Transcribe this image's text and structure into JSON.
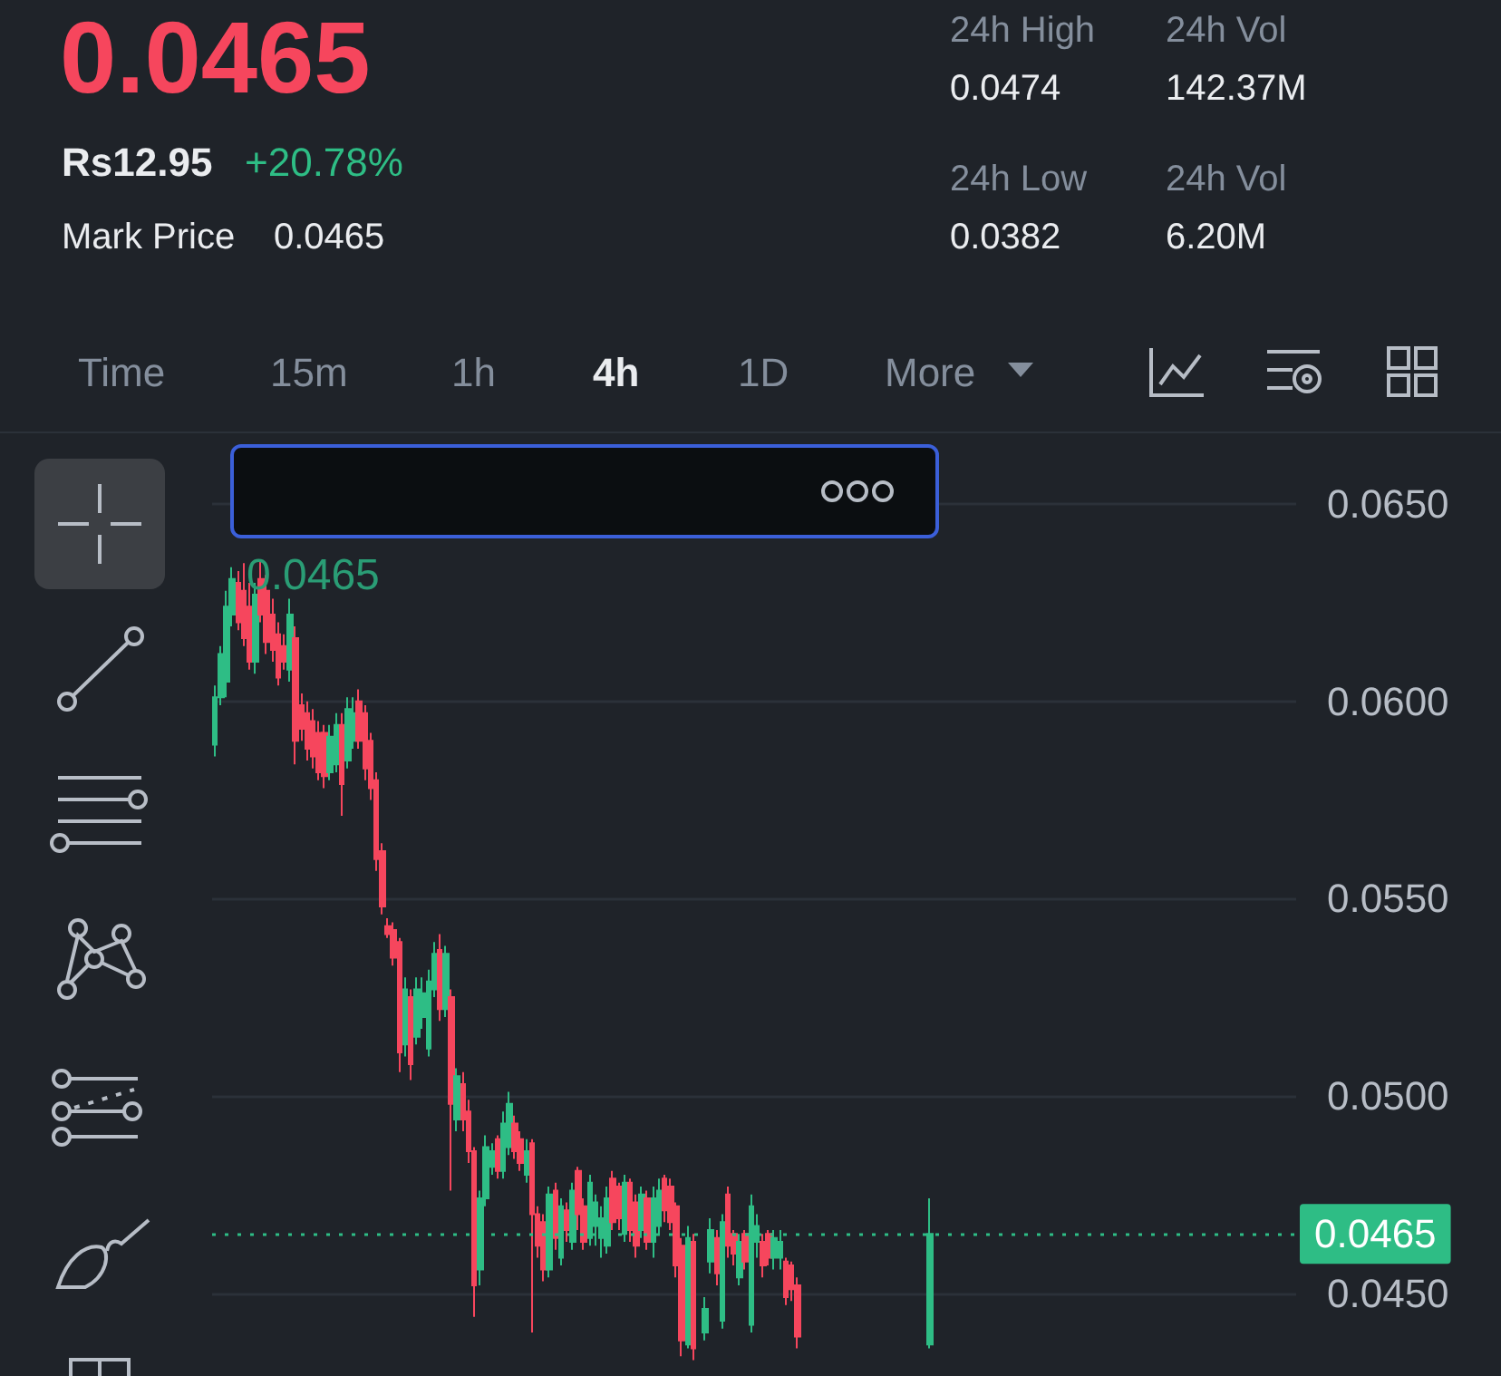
{
  "chart_data": {
    "type": "candlestick",
    "title": "0.0465",
    "annotations": [
      "Rs12.95",
      "+20.78%",
      "Mark Price",
      "0.0465",
      "24h High",
      "0.0474",
      "24h Vol",
      "142.37M",
      "24h Low",
      "0.0382",
      "24h Vol",
      "6.20M",
      "Time",
      "15m",
      "1h",
      "4h",
      "1D",
      "More",
      "0.0465"
    ],
    "categories": [
      null,
      null,
      null,
      null,
      null,
      null,
      null,
      null,
      null,
      null,
      null,
      null,
      null,
      null,
      null,
      null,
      null,
      null,
      null,
      null,
      null,
      null,
      null,
      null,
      null,
      null,
      null,
      null,
      null,
      null,
      null,
      null,
      null,
      null,
      null,
      null,
      null,
      null,
      null,
      null,
      null,
      null,
      null,
      null,
      null,
      null,
      null,
      null,
      null,
      null,
      null,
      null,
      null,
      null,
      null,
      null,
      null,
      null,
      null,
      null,
      null,
      null,
      null,
      null,
      null,
      null,
      null,
      null,
      null,
      null,
      null,
      null,
      null,
      null,
      null,
      null,
      null,
      null,
      null,
      null,
      null,
      null,
      null,
      null,
      null,
      null,
      null,
      null,
      null,
      null,
      null,
      null,
      null,
      null,
      null,
      null,
      null,
      null,
      null,
      null,
      null,
      null,
      null,
      null,
      null,
      null,
      null,
      null,
      null,
      null,
      null,
      null,
      null,
      null,
      null,
      null,
      null,
      null,
      null,
      null,
      null,
      null,
      null,
      null,
      null,
      null,
      null,
      null,
      null,
      null,
      null,
      null,
      null,
      null,
      null,
      null,
      null,
      null,
      null,
      null,
      null,
      null,
      null,
      null,
      null,
      null,
      null,
      null,
      null,
      null,
      null,
      null,
      null,
      null,
      null,
      null,
      null,
      null,
      null,
      null,
      null,
      null,
      null,
      null,
      null,
      null,
      null,
      null,
      null,
      null,
      null,
      null,
      null,
      null,
      null,
      null,
      null,
      null,
      null,
      null,
      null,
      null,
      null,
      null,
      null,
      null,
      null,
      null
    ],
    "ohlc": [
      [
        0.0589,
        0.0604,
        0.0586,
        0.0601
      ],
      [
        0.0601,
        0.0614,
        0.0599,
        0.0612
      ],
      [
        0.0605,
        0.0628,
        0.0601,
        0.0624
      ],
      [
        0.0622,
        0.0634,
        0.0619,
        0.0631
      ],
      [
        0.063,
        0.0633,
        0.0618,
        0.062
      ],
      [
        0.0628,
        0.0635,
        0.0614,
        0.0616
      ],
      [
        0.0624,
        0.063,
        0.0608,
        0.061
      ],
      [
        0.061,
        0.063,
        0.0607,
        0.0627
      ],
      [
        0.0631,
        0.0636,
        0.062,
        0.0622
      ],
      [
        0.0628,
        0.0632,
        0.0612,
        0.0615
      ],
      [
        0.0622,
        0.0626,
        0.061,
        0.0613
      ],
      [
        0.0617,
        0.062,
        0.0604,
        0.0606
      ],
      [
        0.0614,
        0.0617,
        0.0608,
        0.061
      ],
      [
        0.0608,
        0.0626,
        0.0605,
        0.0622
      ],
      [
        0.0616,
        0.0619,
        0.0584,
        0.059
      ],
      [
        0.0599,
        0.0602,
        0.059,
        0.0593
      ],
      [
        0.0597,
        0.06,
        0.0585,
        0.0588
      ],
      [
        0.0595,
        0.0598,
        0.0583,
        0.0586
      ],
      [
        0.0592,
        0.0595,
        0.058,
        0.0582
      ],
      [
        0.0592,
        0.0594,
        0.0578,
        0.0581
      ],
      [
        0.0582,
        0.0594,
        0.058,
        0.0591
      ],
      [
        0.0584,
        0.0597,
        0.0582,
        0.0594
      ],
      [
        0.0594,
        0.0597,
        0.0571,
        0.0579
      ],
      [
        0.0585,
        0.0601,
        0.0583,
        0.0598
      ],
      [
        0.059,
        0.0601,
        0.0588,
        0.0597
      ],
      [
        0.06,
        0.0603,
        0.0588,
        0.059
      ],
      [
        0.0597,
        0.0599,
        0.058,
        0.0583
      ],
      [
        0.059,
        0.0592,
        0.0575,
        0.0578
      ],
      [
        0.058,
        0.0582,
        0.0557,
        0.056
      ],
      [
        0.0562,
        0.0564,
        0.0546,
        0.0548
      ],
      [
        0.0543,
        0.0545,
        0.054,
        0.0541
      ],
      [
        0.0542,
        0.0544,
        0.0533,
        0.0535
      ],
      [
        0.0539,
        0.054,
        0.0506,
        0.0511
      ],
      [
        0.0513,
        0.053,
        0.051,
        0.0527
      ],
      [
        0.0525,
        0.0527,
        0.0504,
        0.0508
      ],
      [
        0.0515,
        0.053,
        0.0513,
        0.0527
      ],
      [
        0.052,
        0.053,
        0.0517,
        0.0526
      ],
      [
        0.0512,
        0.0532,
        0.051,
        0.0529
      ],
      [
        0.0527,
        0.0539,
        0.0525,
        0.0536
      ],
      [
        0.0537,
        0.0541,
        0.0519,
        0.0522
      ],
      [
        0.0522,
        0.0538,
        0.052,
        0.0536
      ],
      [
        0.0525,
        0.0527,
        0.0476,
        0.0498
      ],
      [
        0.0494,
        0.0507,
        0.0491,
        0.0505
      ],
      [
        0.0503,
        0.0506,
        0.0491,
        0.0494
      ],
      [
        0.0496,
        0.0499,
        0.0483,
        0.0486
      ],
      [
        0.0486,
        0.0487,
        0.0444,
        0.0452
      ],
      [
        0.0456,
        0.0476,
        0.0452,
        0.0474
      ],
      [
        0.0474,
        0.049,
        0.0472,
        0.0487
      ],
      [
        0.0482,
        0.0488,
        0.048,
        0.0486
      ],
      [
        0.0489,
        0.049,
        0.0479,
        0.0481
      ],
      [
        0.0481,
        0.0496,
        0.0479,
        0.0493
      ],
      [
        0.0487,
        0.0501,
        0.0485,
        0.0498
      ],
      [
        0.0493,
        0.0495,
        0.0484,
        0.0486
      ],
      [
        0.0489,
        0.0491,
        0.0481,
        0.0483
      ],
      [
        0.048,
        0.0489,
        0.0478,
        0.0486
      ],
      [
        0.0488,
        0.0489,
        0.044,
        0.047
      ],
      [
        0.047,
        0.0472,
        0.0459,
        0.0462
      ],
      [
        0.0468,
        0.047,
        0.0453,
        0.0456
      ],
      [
        0.0456,
        0.0477,
        0.0454,
        0.0475
      ],
      [
        0.0476,
        0.0478,
        0.0461,
        0.0464
      ],
      [
        0.0459,
        0.0474,
        0.0457,
        0.0472
      ],
      [
        0.0471,
        0.0473,
        0.0463,
        0.0466
      ],
      [
        0.0463,
        0.0478,
        0.0461,
        0.0476
      ],
      [
        0.0481,
        0.0482,
        0.0466,
        0.047
      ],
      [
        0.0472,
        0.0474,
        0.0461,
        0.0463
      ],
      [
        0.0464,
        0.048,
        0.0462,
        0.0478
      ],
      [
        0.0467,
        0.0475,
        0.0462,
        0.0473
      ],
      [
        0.0464,
        0.0472,
        0.0459,
        0.0469
      ],
      [
        0.0462,
        0.0477,
        0.046,
        0.0474
      ],
      [
        0.0479,
        0.0481,
        0.0466,
        0.0468
      ],
      [
        0.0477,
        0.0478,
        0.0466,
        0.0469
      ],
      [
        0.0465,
        0.048,
        0.0463,
        0.0478
      ],
      [
        0.0478,
        0.0479,
        0.0463,
        0.0466
      ],
      [
        0.0473,
        0.0475,
        0.0459,
        0.0462
      ],
      [
        0.0466,
        0.0477,
        0.0464,
        0.0475
      ],
      [
        0.0474,
        0.0476,
        0.0461,
        0.0463
      ],
      [
        0.0463,
        0.0477,
        0.0459,
        0.0474
      ],
      [
        0.0467,
        0.0479,
        0.0465,
        0.0476
      ],
      [
        0.0479,
        0.048,
        0.0468,
        0.0471
      ],
      [
        0.0477,
        0.0479,
        0.0466,
        0.0468
      ],
      [
        0.0472,
        0.0473,
        0.0454,
        0.0457
      ],
      [
        0.0462,
        0.0464,
        0.0434,
        0.0438
      ],
      [
        0.0437,
        0.0467,
        0.0436,
        0.0464
      ],
      [
        0.0463,
        0.0465,
        0.0433,
        0.0436
      ],
      null,
      [
        0.044,
        0.0449,
        0.0438,
        0.0446
      ],
      [
        0.0458,
        0.0469,
        0.0455,
        0.0466
      ],
      [
        0.0464,
        0.0466,
        0.0452,
        0.0455
      ],
      [
        0.0443,
        0.047,
        0.0441,
        0.0468
      ],
      [
        0.0475,
        0.0477,
        0.0459,
        0.0462
      ],
      [
        0.0465,
        0.0466,
        0.0457,
        0.046
      ],
      [
        0.0454,
        0.0465,
        0.0452,
        0.0463
      ],
      [
        0.0465,
        0.0466,
        0.0456,
        0.0458
      ],
      [
        0.0442,
        0.0475,
        0.044,
        0.0472
      ],
      [
        0.0463,
        0.047,
        0.0459,
        0.0467
      ],
      [
        0.0463,
        0.0465,
        0.0454,
        0.0457
      ],
      [
        0.0465,
        0.0466,
        0.0457,
        0.0459
      ],
      [
        0.0459,
        0.0466,
        0.0456,
        0.0464
      ],
      [
        0.0459,
        0.0466,
        0.0456,
        0.0463
      ],
      [
        0.0458,
        0.0459,
        0.0447,
        0.0449
      ],
      [
        0.0457,
        0.0458,
        0.0448,
        0.0451
      ],
      [
        0.0452,
        0.0454,
        0.0436,
        0.0439
      ],
      null,
      null,
      null,
      null,
      null,
      null,
      null,
      null,
      null,
      null,
      null,
      null,
      null,
      null,
      null,
      null,
      null,
      null,
      null,
      null,
      null,
      null,
      [
        0.0437,
        0.0474,
        0.0436,
        0.0465
      ],
      null,
      null,
      null,
      null,
      null,
      null,
      null,
      null,
      null,
      null,
      null,
      null,
      null,
      null,
      null,
      null,
      null,
      null,
      null,
      null,
      null,
      null,
      null,
      null,
      null,
      null,
      null,
      null,
      null,
      null,
      null,
      null,
      null,
      null,
      null,
      null,
      null,
      null,
      null,
      null,
      null,
      null,
      null,
      null,
      null,
      null,
      null,
      null,
      null,
      null,
      null,
      null,
      null,
      null,
      null,
      null,
      null,
      null,
      null,
      null,
      null,
      null,
      null
    ],
    "ylim": [
      0.0429,
      0.0667
    ],
    "yticks": [
      {
        "value": 0.045,
        "label": "0.0450"
      },
      {
        "value": 0.05,
        "label": "0.0500"
      },
      {
        "value": 0.055,
        "label": "0.0550"
      },
      {
        "value": 0.06,
        "label": "0.0600"
      },
      {
        "value": 0.065,
        "label": "0.0650"
      }
    ],
    "ref_lines": [
      {
        "axis": "y",
        "value": 0.0465,
        "label": "0.0465",
        "color": "#2ebd85",
        "line_style": "dotted"
      }
    ],
    "grid": "y",
    "tick_labels": "y"
  }
}
